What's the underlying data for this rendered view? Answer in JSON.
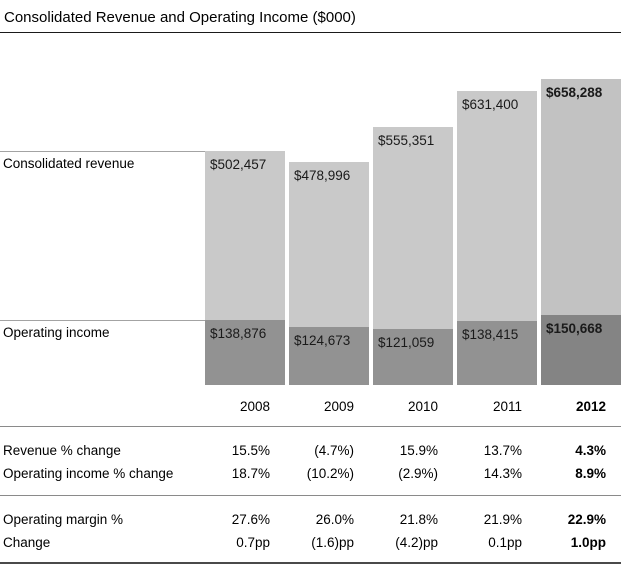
{
  "title": "Consolidated Revenue and Operating Income ($000)",
  "chart_data": {
    "type": "bar",
    "subtype": "overlaid-columns",
    "unit": "$000",
    "title": "Consolidated Revenue and Operating Income ($000)",
    "categories": [
      "2008",
      "2009",
      "2010",
      "2011",
      "2012"
    ],
    "series": [
      {
        "name": "Consolidated revenue",
        "values": [
          502457,
          478996,
          555351,
          631400,
          658288
        ],
        "labels": [
          "$502,457",
          "$478,996",
          "$555,351",
          "$631,400",
          "$658,288"
        ]
      },
      {
        "name": "Operating income",
        "values": [
          138876,
          124673,
          121059,
          138415,
          150668
        ],
        "labels": [
          "$138,876",
          "$124,673",
          "$121,059",
          "$138,415",
          "$150,668"
        ]
      }
    ],
    "ylim": [
      0,
      658288
    ],
    "grid": false,
    "legend_position": "left-inline",
    "highlight_category": "2012",
    "colors": {
      "revenue_bar": "#c9c9c9",
      "operating_bar": "#929292",
      "revenue_bar_highlight": "#c2c2c2",
      "operating_bar_highlight": "#848484",
      "text": "#000000",
      "rule": "#8a8a8a"
    }
  },
  "table": {
    "groups": [
      {
        "rows": [
          {
            "label": "Revenue % change",
            "values": [
              "15.5%",
              "(4.7%)",
              "15.9%",
              "13.7%",
              "4.3%"
            ]
          },
          {
            "label": "Operating income % change",
            "values": [
              "18.7%",
              "(10.2%)",
              "(2.9%)",
              "14.3%",
              "8.9%"
            ]
          }
        ]
      },
      {
        "rows": [
          {
            "label": "Operating margin %",
            "values": [
              "27.6%",
              "26.0%",
              "21.8%",
              "21.9%",
              "22.9%"
            ]
          },
          {
            "label": "Change",
            "values": [
              "0.7pp",
              "(1.6)pp",
              "(4.2)pp",
              "0.1pp",
              "1.0pp"
            ]
          }
        ]
      }
    ]
  }
}
